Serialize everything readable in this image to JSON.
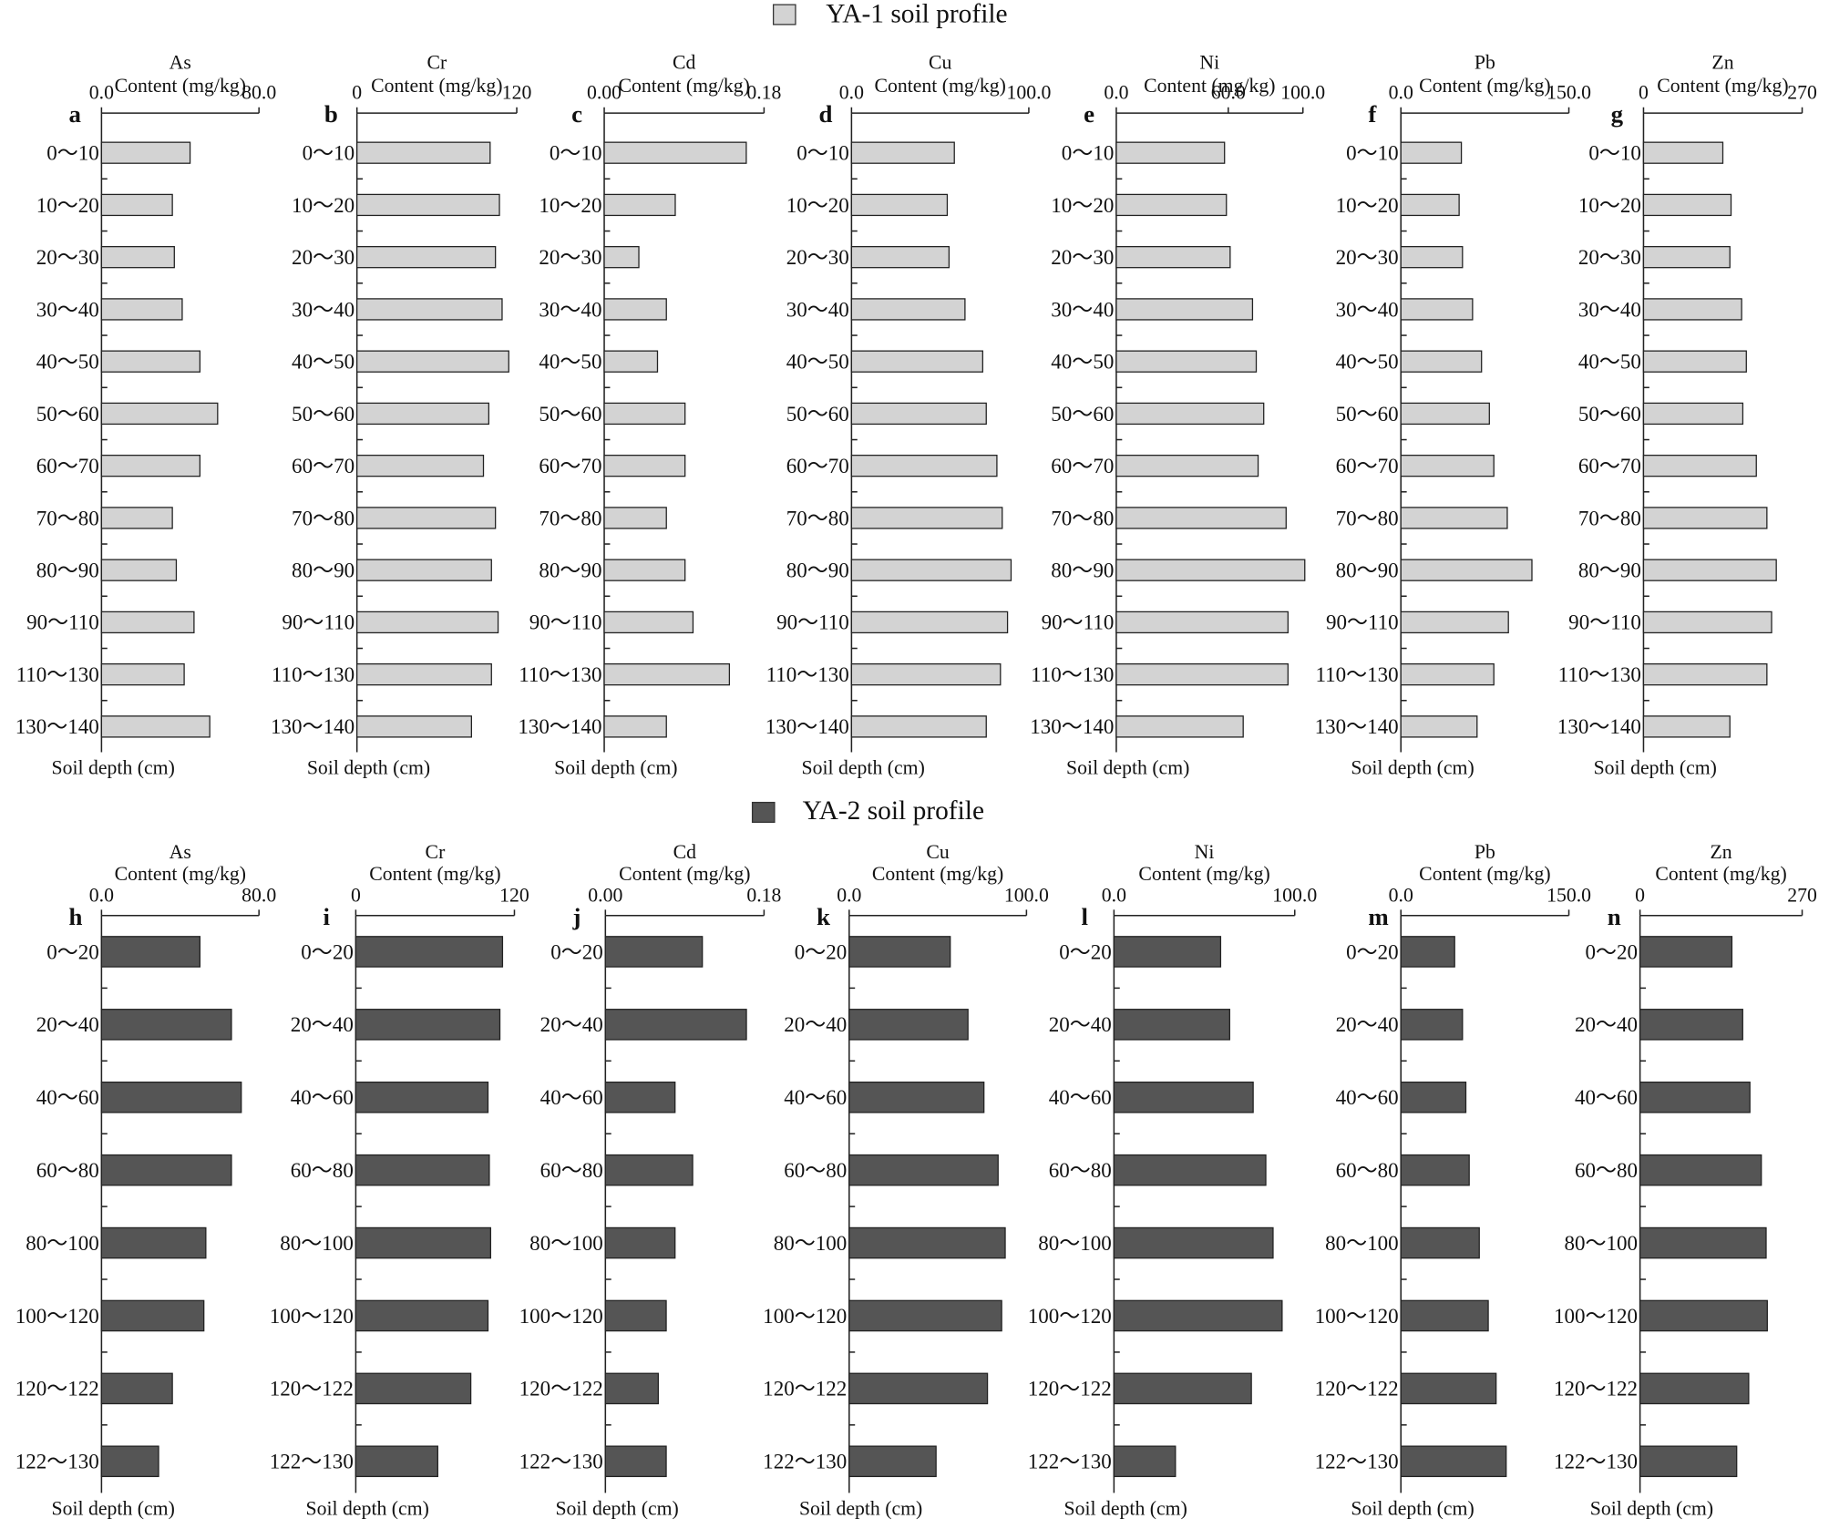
{
  "legend": [
    {
      "label": "YA-1 soil profile",
      "color": "#d3d3d3"
    },
    {
      "label": "YA-2 soil profile",
      "color": "#555555"
    }
  ],
  "chart_data": [
    {
      "type": "bar",
      "panel": "a",
      "title": "As",
      "xlabel": "Content (mg/kg)",
      "ylabel": "Soil depth (cm)",
      "color": "#d3d3d3",
      "categories": [
        "0～10",
        "10～20",
        "20～30",
        "30～40",
        "40～50",
        "50～60",
        "60～70",
        "70～80",
        "80～90",
        "90～110",
        "110～130",
        "130～140"
      ],
      "values": [
        45,
        36,
        37,
        41,
        50,
        59,
        50,
        36,
        38,
        47,
        42,
        55
      ],
      "xlim": [
        0,
        80
      ],
      "xticks": [
        {
          "value": 0,
          "label": "0.0"
        },
        {
          "value": 80,
          "label": "80.0"
        }
      ]
    },
    {
      "type": "bar",
      "panel": "b",
      "title": "Cr",
      "xlabel": "Content (mg/kg)",
      "ylabel": "Soil depth (cm)",
      "color": "#d3d3d3",
      "categories": [
        "0～10",
        "10～20",
        "20～30",
        "30～40",
        "40～50",
        "50～60",
        "60～70",
        "70～80",
        "80～90",
        "90～110",
        "110～130",
        "130～140"
      ],
      "values": [
        100,
        107,
        104,
        109,
        114,
        99,
        95,
        104,
        101,
        106,
        101,
        86
      ],
      "xlim": [
        0,
        120
      ],
      "xticks": [
        0,
        120
      ]
    },
    {
      "type": "bar",
      "panel": "c",
      "title": "Cd",
      "xlabel": "Content (mg/kg)",
      "ylabel": "Soil depth (cm)",
      "color": "#d3d3d3",
      "categories": [
        "0～10",
        "10～20",
        "20～30",
        "30～40",
        "40～50",
        "50～60",
        "60～70",
        "70～80",
        "80～90",
        "90～110",
        "110～130",
        "130～140"
      ],
      "values": [
        0.16,
        0.08,
        0.039,
        0.07,
        0.06,
        0.091,
        0.091,
        0.07,
        0.091,
        0.1,
        0.141,
        0.07
      ],
      "xlim": [
        0,
        0.18
      ],
      "xticks": [
        {
          "value": 0,
          "label": "0.00"
        },
        {
          "value": 0.18,
          "label": "0.18"
        }
      ]
    },
    {
      "type": "bar",
      "panel": "d",
      "title": "Cu",
      "xlabel": "Content (mg/kg)",
      "ylabel": "Soil depth (cm)",
      "color": "#d3d3d3",
      "categories": [
        "0～10",
        "10～20",
        "20～30",
        "30～40",
        "40～50",
        "50～60",
        "60～70",
        "70～80",
        "80～90",
        "90～110",
        "110～130",
        "130～140"
      ],
      "values": [
        58,
        54,
        55,
        64,
        74,
        76,
        82,
        85,
        90,
        88,
        84,
        76
      ],
      "xlim": [
        0,
        100
      ],
      "xticks": [
        {
          "value": 0,
          "label": "0.0"
        },
        {
          "value": 100,
          "label": "100.0"
        }
      ]
    },
    {
      "type": "bar",
      "panel": "e",
      "title": "Ni",
      "xlabel": "Content (mg/kg)",
      "ylabel": "Soil depth (cm)",
      "color": "#d3d3d3",
      "categories": [
        "0～10",
        "10～20",
        "20～30",
        "30～40",
        "40～50",
        "50～60",
        "60～70",
        "70～80",
        "80～90",
        "90～110",
        "110～130",
        "130～140"
      ],
      "values": [
        58,
        59,
        61,
        73,
        75,
        79,
        76,
        91,
        101,
        92,
        92,
        68
      ],
      "xlim": [
        0,
        100
      ],
      "xticks": [
        {
          "value": 0,
          "label": "0.0"
        },
        {
          "value": 60,
          "label": "60.0"
        },
        {
          "value": 100,
          "label": "100.0"
        }
      ]
    },
    {
      "type": "bar",
      "panel": "f",
      "title": "Pb",
      "xlabel": "Content (mg/kg)",
      "ylabel": "Soil depth (cm)",
      "color": "#d3d3d3",
      "categories": [
        "0～10",
        "10～20",
        "20～30",
        "30～40",
        "40～50",
        "50～60",
        "60～70",
        "70～80",
        "80～90",
        "90～110",
        "110～130",
        "130～140"
      ],
      "values": [
        54,
        52,
        55,
        64,
        72,
        79,
        83,
        95,
        117,
        96,
        83,
        68
      ],
      "xlim": [
        0,
        150
      ],
      "xticks": [
        {
          "value": 0,
          "label": "0.0"
        },
        {
          "value": 150,
          "label": "150.0"
        }
      ]
    },
    {
      "type": "bar",
      "panel": "g",
      "title": "Zn",
      "xlabel": "Content (mg/kg)",
      "ylabel": "Soil depth (cm)",
      "color": "#d3d3d3",
      "categories": [
        "0～10",
        "10～20",
        "20～30",
        "30～40",
        "40～50",
        "50～60",
        "60～70",
        "70～80",
        "80～90",
        "90～110",
        "110～130",
        "130～140"
      ],
      "values": [
        135,
        149,
        147,
        167,
        175,
        169,
        192,
        210,
        226,
        218,
        210,
        147
      ],
      "xlim": [
        0,
        270
      ],
      "xticks": [
        0,
        270
      ]
    },
    {
      "type": "bar",
      "panel": "h",
      "title": "As",
      "xlabel": "Content (mg/kg)",
      "ylabel": "Soil depth (cm)",
      "color": "#555555",
      "categories": [
        "0～20",
        "20～40",
        "40～60",
        "60～80",
        "80～100",
        "100～120",
        "120～122",
        "122～130"
      ],
      "values": [
        50,
        66,
        71,
        66,
        53,
        52,
        36,
        29
      ],
      "xlim": [
        0,
        80
      ],
      "xticks": [
        {
          "value": 0,
          "label": "0.0"
        },
        {
          "value": 80,
          "label": "80.0"
        }
      ]
    },
    {
      "type": "bar",
      "panel": "i",
      "title": "Cr",
      "xlabel": "Content (mg/kg)",
      "ylabel": "Soil depth (cm)",
      "color": "#555555",
      "categories": [
        "0～20",
        "20～40",
        "40～60",
        "60～80",
        "80～100",
        "100～120",
        "120～122",
        "122～130"
      ],
      "values": [
        111,
        109,
        100,
        101,
        102,
        100,
        87,
        62
      ],
      "xlim": [
        0,
        120
      ],
      "xticks": [
        0,
        120
      ]
    },
    {
      "type": "bar",
      "panel": "j",
      "title": "Cd",
      "xlabel": "Content (mg/kg)",
      "ylabel": "Soil depth (cm)",
      "color": "#555555",
      "categories": [
        "0～20",
        "20～40",
        "40～60",
        "60～80",
        "80～100",
        "100～120",
        "120～122",
        "122～130"
      ],
      "values": [
        0.11,
        0.16,
        0.079,
        0.099,
        0.079,
        0.069,
        0.06,
        0.069
      ],
      "xlim": [
        0,
        0.18
      ],
      "xticks": [
        {
          "value": 0,
          "label": "0.00"
        },
        {
          "value": 0.18,
          "label": "0.18"
        }
      ]
    },
    {
      "type": "bar",
      "panel": "k",
      "title": "Cu",
      "xlabel": "Content (mg/kg)",
      "ylabel": "Soil depth (cm)",
      "color": "#555555",
      "categories": [
        "0～20",
        "20～40",
        "40～60",
        "60～80",
        "80～100",
        "100～120",
        "120～122",
        "122～130"
      ],
      "values": [
        57,
        67,
        76,
        84,
        88,
        86,
        78,
        49
      ],
      "xlim": [
        0,
        100
      ],
      "xticks": [
        {
          "value": 0,
          "label": "0.0"
        },
        {
          "value": 100,
          "label": "100.0"
        }
      ]
    },
    {
      "type": "bar",
      "panel": "l",
      "title": "Ni",
      "xlabel": "Content (mg/kg)",
      "ylabel": "Soil depth (cm)",
      "color": "#555555",
      "categories": [
        "0～20",
        "20～40",
        "40～60",
        "60～80",
        "80～100",
        "100～120",
        "120～122",
        "122～130"
      ],
      "values": [
        59,
        64,
        77,
        84,
        88,
        93,
        76,
        34
      ],
      "xlim": [
        0,
        100
      ],
      "xticks": [
        {
          "value": 0,
          "label": "0.0"
        },
        {
          "value": 100,
          "label": "100.0"
        }
      ]
    },
    {
      "type": "bar",
      "panel": "m",
      "title": "Pb",
      "xlabel": "Content (mg/kg)",
      "ylabel": "Soil depth (cm)",
      "color": "#555555",
      "categories": [
        "0～20",
        "20～40",
        "40～60",
        "60～80",
        "80～100",
        "100～120",
        "120～122",
        "122～130"
      ],
      "values": [
        48,
        55,
        58,
        61,
        70,
        78,
        85,
        94
      ],
      "xlim": [
        0,
        150
      ],
      "xticks": [
        {
          "value": 0,
          "label": "0.0"
        },
        {
          "value": 150,
          "label": "150.0"
        }
      ]
    },
    {
      "type": "bar",
      "panel": "n",
      "title": "Zn",
      "xlabel": "Content (mg/kg)",
      "ylabel": "Soil depth (cm)",
      "color": "#555555",
      "categories": [
        "0～20",
        "20～40",
        "40～60",
        "60～80",
        "80～100",
        "100～120",
        "120～122",
        "122～130"
      ],
      "values": [
        153,
        171,
        183,
        202,
        210,
        212,
        181,
        161
      ],
      "xlim": [
        0,
        270
      ],
      "xticks": [
        0,
        270
      ]
    }
  ]
}
